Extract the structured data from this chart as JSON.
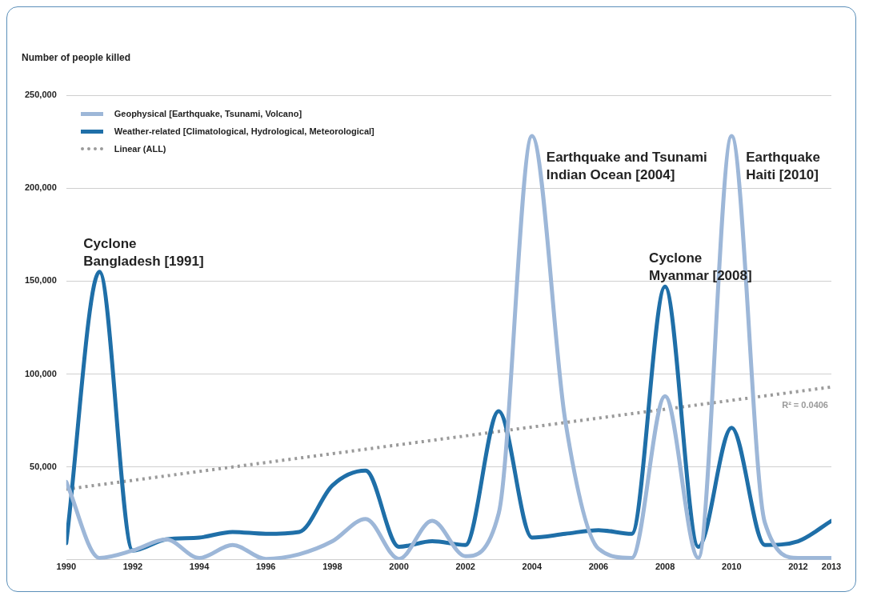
{
  "chart_data": {
    "type": "line",
    "ylabel": "Number of people killed",
    "xlim": [
      1990,
      2013
    ],
    "xticks": [
      1990,
      1992,
      1994,
      1996,
      1998,
      2000,
      2002,
      2004,
      2006,
      2008,
      2010,
      2012,
      2013
    ],
    "ylim": [
      0,
      250000
    ],
    "yticks": [
      {
        "value": 0,
        "label": null
      },
      {
        "value": 50000,
        "label": "50,000"
      },
      {
        "value": 100000,
        "label": "100,000"
      },
      {
        "value": 150000,
        "label": "150,000"
      },
      {
        "value": 200000,
        "label": "200,000"
      },
      {
        "value": 250000,
        "label": "250,000"
      }
    ],
    "grid": "y",
    "legend": "top left",
    "marker": "none",
    "x": [
      1990,
      1991,
      1992,
      1993,
      1994,
      1995,
      1996,
      1997,
      1998,
      1999,
      2000,
      2001,
      2002,
      2003,
      2004,
      2005,
      2006,
      2007,
      2008,
      2009,
      2010,
      2011,
      2012,
      2013
    ],
    "series": [
      {
        "name": "Geophysical [Earthquake, Tsunami, Volcano]",
        "color": "#9db7d8",
        "values": [
          42000,
          1000,
          5000,
          11000,
          1000,
          8000,
          500,
          3000,
          10000,
          22000,
          500,
          21000,
          2000,
          25000,
          228000,
          75000,
          6000,
          1000,
          88000,
          1000,
          228000,
          20000,
          1000,
          1000
        ]
      },
      {
        "name": "Weather-related [Climatological, Hydrological, Meteorological]",
        "color": "#1f6fa8",
        "values": [
          9000,
          155000,
          5000,
          11000,
          12000,
          15000,
          14000,
          15000,
          40000,
          48000,
          7000,
          10000,
          8000,
          80000,
          12000,
          14000,
          16000,
          14000,
          147000,
          7000,
          71000,
          8000,
          10000,
          21000
        ]
      },
      {
        "name": "Linear (ALL)",
        "color": "#9a9a9a",
        "line_style": "dotted",
        "x": [
          1990,
          2013
        ],
        "values": [
          38000,
          93000
        ]
      }
    ],
    "annotations": [
      {
        "text": "Cyclone\nBangladesh [1991]",
        "x": 1991,
        "y": 155000
      },
      {
        "text": "Earthquake and Tsunami\nIndian Ocean [2004]",
        "x": 2004,
        "y": 228000
      },
      {
        "text": "Cyclone\nMyanmar [2008]",
        "x": 2008,
        "y": 147000
      },
      {
        "text": "Earthquake\nHaiti [2010]",
        "x": 2010,
        "y": 228000
      },
      {
        "text": "R² = 0.0406",
        "x": 2013,
        "y": 93000
      }
    ]
  }
}
